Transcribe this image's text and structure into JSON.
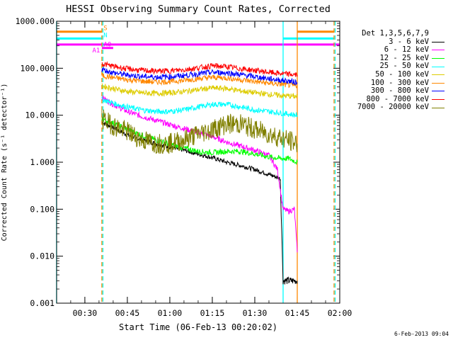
{
  "chart_data": {
    "type": "line",
    "title": "HESSI Observing Summary Count Rates, Corrected",
    "xlabel": "Start Time (06-Feb-13 00:20:02)",
    "ylabel": "Corrected Count Rate (s⁻¹ detector⁻¹)",
    "y_scale": "log",
    "ylim": [
      0.001,
      1000
    ],
    "yticks": [
      "0.001",
      "0.010",
      "0.100",
      "1.000",
      "10.000",
      "100.000",
      "1000.000"
    ],
    "xlim_minutes": [
      20.03,
      120
    ],
    "xticks": [
      "00:30",
      "00:45",
      "01:00",
      "01:15",
      "01:30",
      "01:45",
      "02:00"
    ],
    "grid": false,
    "legend_title": "Det 1,3,5,6,7,9",
    "legend_position": "right",
    "series": [
      {
        "name": "3 - 6 keV",
        "color": "#000000",
        "x": [
          "00:36",
          "00:40",
          "00:45",
          "00:50",
          "00:55",
          "01:00",
          "01:05",
          "01:10",
          "01:15",
          "01:20",
          "01:25",
          "01:30",
          "01:35",
          "01:39",
          "01:40",
          "01:42",
          "01:44",
          "01:45"
        ],
        "y": [
          7,
          5.5,
          3.8,
          3.0,
          2.5,
          2.1,
          1.8,
          1.5,
          1.25,
          1.0,
          0.85,
          0.7,
          0.55,
          0.45,
          0.003,
          0.003,
          0.003,
          0.003
        ]
      },
      {
        "name": "6 - 12 keV",
        "color": "#ff00ff",
        "x": [
          "00:36",
          "00:40",
          "00:45",
          "00:50",
          "00:55",
          "01:00",
          "01:05",
          "01:10",
          "01:15",
          "01:20",
          "01:25",
          "01:30",
          "01:35",
          "01:38",
          "01:40",
          "01:42",
          "01:44",
          "01:45"
        ],
        "y": [
          24,
          17,
          12,
          9.5,
          7.8,
          6.3,
          5.2,
          4.3,
          3.5,
          2.7,
          2.2,
          1.8,
          1.4,
          0.7,
          0.1,
          0.09,
          0.1,
          0.012
        ]
      },
      {
        "name": "12 - 25 keV",
        "color": "#00ff00",
        "x": [
          "00:36",
          "00:40",
          "00:45",
          "00:50",
          "00:55",
          "01:00",
          "01:05",
          "01:10",
          "01:15",
          "01:20",
          "01:25",
          "01:30",
          "01:35",
          "01:39",
          "01:42",
          "01:45"
        ],
        "y": [
          8.5,
          6.8,
          5.0,
          3.8,
          3.0,
          2.4,
          2.0,
          1.7,
          1.6,
          1.7,
          1.7,
          1.5,
          1.3,
          1.2,
          1.2,
          1.0
        ]
      },
      {
        "name": "25 - 50 keV",
        "color": "#00ffff",
        "x": [
          "00:36",
          "00:40",
          "00:45",
          "00:50",
          "00:55",
          "01:00",
          "01:05",
          "01:10",
          "01:15",
          "01:20",
          "01:25",
          "01:30",
          "01:35",
          "01:40",
          "01:45"
        ],
        "y": [
          22,
          18,
          15,
          13,
          12,
          12,
          13,
          15,
          17,
          17,
          15,
          13,
          12,
          11,
          10
        ]
      },
      {
        "name": "50 - 100 keV",
        "color": "#ddcc00",
        "x": [
          "00:36",
          "00:40",
          "00:45",
          "00:50",
          "00:55",
          "01:00",
          "01:05",
          "01:10",
          "01:15",
          "01:20",
          "01:25",
          "01:30",
          "01:35",
          "01:40",
          "01:45"
        ],
        "y": [
          42,
          37,
          32,
          30,
          29,
          30,
          32,
          35,
          38,
          37,
          33,
          30,
          28,
          26,
          25
        ]
      },
      {
        "name": "100 - 300 keV",
        "color": "#ff8800",
        "x": [
          "00:36",
          "00:40",
          "00:45",
          "00:50",
          "00:55",
          "01:00",
          "01:05",
          "01:10",
          "01:15",
          "01:20",
          "01:25",
          "01:30",
          "01:35",
          "01:40",
          "01:45"
        ],
        "y": [
          70,
          63,
          57,
          53,
          51,
          52,
          55,
          60,
          64,
          62,
          57,
          52,
          48,
          45,
          42
        ]
      },
      {
        "name": "300 - 800 keV",
        "color": "#0000ff",
        "x": [
          "00:36",
          "00:40",
          "00:45",
          "00:50",
          "00:55",
          "01:00",
          "01:05",
          "01:10",
          "01:15",
          "01:20",
          "01:25",
          "01:30",
          "01:35",
          "01:40",
          "01:45"
        ],
        "y": [
          95,
          80,
          72,
          67,
          65,
          66,
          70,
          76,
          82,
          80,
          73,
          66,
          60,
          55,
          50
        ]
      },
      {
        "name": "800 - 7000 keV",
        "color": "#ff0000",
        "x": [
          "00:36",
          "00:40",
          "00:45",
          "00:50",
          "00:55",
          "01:00",
          "01:05",
          "01:10",
          "01:15",
          "01:20",
          "01:25",
          "01:30",
          "01:35",
          "01:40",
          "01:45"
        ],
        "y": [
          125,
          110,
          97,
          90,
          87,
          88,
          93,
          102,
          112,
          108,
          98,
          90,
          82,
          76,
          72
        ]
      },
      {
        "name": "7000 - 20000 keV",
        "color": "#808000",
        "x": [
          "00:36",
          "00:40",
          "00:45",
          "00:50",
          "00:55",
          "01:00",
          "01:05",
          "01:10",
          "01:15",
          "01:20",
          "01:25",
          "01:30",
          "01:35",
          "01:40",
          "01:45"
        ],
        "y": [
          8.5,
          6.0,
          4.5,
          3.0,
          2.5,
          2.5,
          3.0,
          4.0,
          5.0,
          6.5,
          6.5,
          5.0,
          4.0,
          3.2,
          2.5
        ]
      }
    ],
    "flag_bars": [
      {
        "label": "S",
        "color": "#ff8800",
        "y": 600,
        "segments": [
          [
            "00:20",
            "00:36"
          ],
          [
            "01:45",
            "01:58"
          ]
        ]
      },
      {
        "label": "N",
        "color": "#00ffff",
        "y": 430,
        "segments": [
          [
            "00:20",
            "00:36"
          ],
          [
            "01:40",
            "01:58"
          ]
        ]
      },
      {
        "label": "A1",
        "color": "#ff00ff",
        "y": 320,
        "segments": [
          [
            "00:20",
            "02:00"
          ]
        ]
      },
      {
        "label": "A0",
        "color": "#ff00ff",
        "y": 270,
        "segments": [
          [
            "00:36",
            "00:40"
          ]
        ]
      }
    ],
    "vertical_markers": [
      {
        "x": "00:20",
        "color": "#00ffff",
        "style": "solid"
      },
      {
        "x": "00:36",
        "color": "#ff8800",
        "style": "dashed"
      },
      {
        "x": "00:36",
        "color": "#00ffff",
        "style": "dashed"
      },
      {
        "x": "01:40",
        "color": "#00ffff",
        "style": "solid"
      },
      {
        "x": "01:45",
        "color": "#ff8800",
        "style": "solid"
      },
      {
        "x": "01:58",
        "color": "#ff8800",
        "style": "dashed"
      },
      {
        "x": "01:58",
        "color": "#00ffff",
        "style": "dashed"
      }
    ]
  },
  "timestamp": "6-Feb-2013 09:04"
}
